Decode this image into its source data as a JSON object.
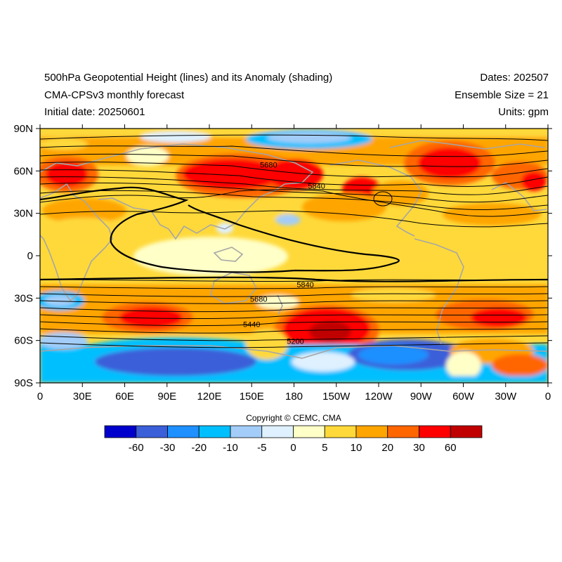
{
  "header": {
    "title_left_1": "500hPa Geopotential Height (lines) and its Anomaly (shading)",
    "title_left_2": "CMA-CPSv3 monthly forecast",
    "title_left_3": "Initial date: 20250601",
    "title_right_1": "Dates: 202507",
    "title_right_2": "Ensemble Size = 21",
    "title_right_3": "Units: gpm"
  },
  "map": {
    "lat_ticks": [
      "90N",
      "60N",
      "30N",
      "0",
      "30S",
      "60S",
      "90S"
    ],
    "lon_ticks": [
      "0",
      "30E",
      "60E",
      "90E",
      "120E",
      "150E",
      "180",
      "150W",
      "120W",
      "90W",
      "60W",
      "30W",
      "0"
    ],
    "contour_labels": [
      {
        "text": "5680",
        "lon": 162,
        "lat": 64
      },
      {
        "text": "5840",
        "lon": 196,
        "lat": 49
      },
      {
        "text": "5840",
        "lon": 188,
        "lat": -21
      },
      {
        "text": "5680",
        "lon": 155,
        "lat": -31
      },
      {
        "text": "5440",
        "lon": 150,
        "lat": -49
      },
      {
        "text": "5200",
        "lon": 181,
        "lat": -61
      }
    ]
  },
  "colorbar": {
    "labels": [
      "-60",
      "-30",
      "-20",
      "-10",
      "-5",
      "0",
      "5",
      "10",
      "20",
      "30",
      "60"
    ],
    "colors": [
      "#0000cd",
      "#3a5fd9",
      "#1e90ff",
      "#00bfff",
      "#a3cdf8",
      "#dff1ff",
      "#ffffc8",
      "#ffd93a",
      "#ffa500",
      "#ff6600",
      "#ff0000",
      "#c00000"
    ]
  },
  "copyright": "Copyright © CEMC, CMA"
}
